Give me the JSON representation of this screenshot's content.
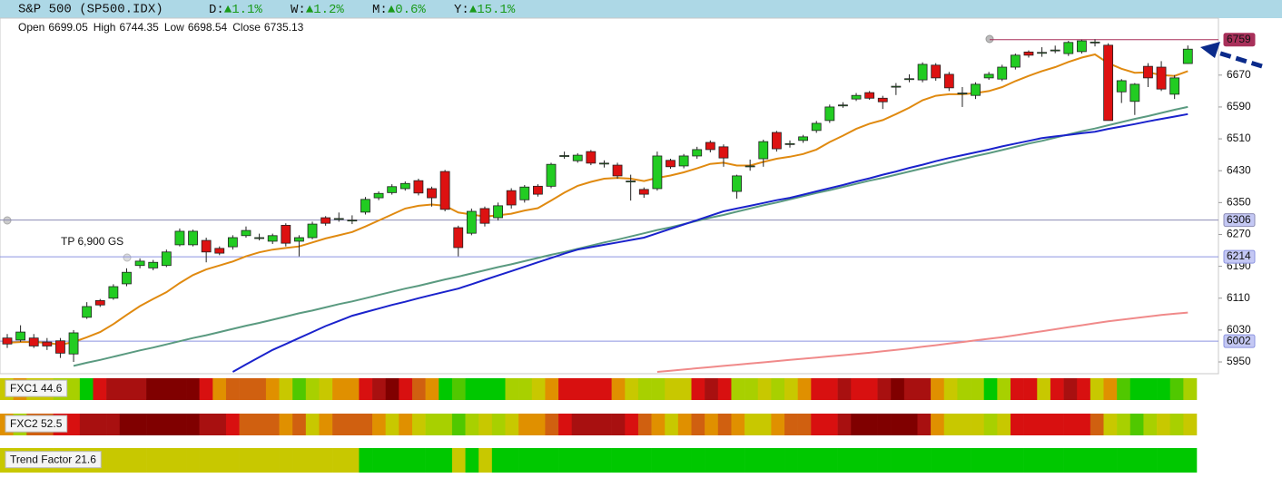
{
  "chart_data": {
    "type": "candlestick",
    "title": "S&P 500 (SP500.IDX)",
    "stats": [
      {
        "label": "D:",
        "change": "▲1.1%"
      },
      {
        "label": "W:",
        "change": "▲1.2%"
      },
      {
        "label": "M:",
        "change": "▲0.6%"
      },
      {
        "label": "Y:",
        "change": "▲15.1%"
      }
    ],
    "ohlc_labels": [
      "Open",
      "High",
      "Low",
      "Close"
    ],
    "up_color": "#22cc22",
    "down_color": "#dd1111",
    "ylim": [
      5925,
      6813
    ],
    "yticks": [
      5950,
      6030,
      6110,
      6190,
      6270,
      6350,
      6430,
      6510,
      6590,
      6670
    ],
    "open": [
      6010,
      6005,
      6010,
      6000,
      6003,
      5970,
      6062,
      6104,
      6110,
      6146,
      6192,
      6186,
      6192,
      6244,
      6244,
      6255,
      6235,
      6239,
      6267,
      6262,
      6253,
      6293,
      6253,
      6262,
      6312,
      6310,
      6305,
      6326,
      6362,
      6375,
      6385,
      6405,
      6385,
      6428,
      6287,
      6273,
      6335,
      6312,
      6380,
      6357,
      6391,
      6391,
      6467,
      6455,
      6478,
      6448,
      6444,
      6404,
      6383,
      6385,
      6456,
      6442,
      6467,
      6501,
      6490,
      6378,
      6442,
      6460,
      6526,
      6497,
      6506,
      6531,
      6556,
      6594,
      6610,
      6626,
      6612,
      6642,
      6660,
      6658,
      6695,
      6672,
      6624,
      6619,
      6663,
      6660,
      6690,
      6728,
      6726,
      6732,
      6724,
      6729,
      6752,
      6745,
      6628,
      6604,
      6692,
      6690,
      6622,
      6699.05
    ],
    "high": [
      6020,
      6042,
      6020,
      6010,
      6010,
      6030,
      6100,
      6108,
      6145,
      6185,
      6210,
      6206,
      6232,
      6285,
      6282,
      6262,
      6240,
      6268,
      6290,
      6272,
      6272,
      6298,
      6268,
      6302,
      6316,
      6325,
      6318,
      6364,
      6378,
      6396,
      6403,
      6410,
      6390,
      6432,
      6292,
      6335,
      6340,
      6350,
      6386,
      6394,
      6396,
      6450,
      6478,
      6474,
      6482,
      6456,
      6450,
      6420,
      6388,
      6478,
      6460,
      6472,
      6490,
      6506,
      6496,
      6420,
      6458,
      6508,
      6530,
      6506,
      6520,
      6555,
      6596,
      6602,
      6625,
      6630,
      6618,
      6650,
      6672,
      6702,
      6700,
      6678,
      6640,
      6652,
      6678,
      6696,
      6724,
      6732,
      6740,
      6744,
      6756,
      6759,
      6760,
      6750,
      6660,
      6650,
      6700,
      6705,
      6670,
      6744.35
    ],
    "low": [
      5985,
      6000,
      5985,
      5980,
      5960,
      5950,
      6058,
      6088,
      6106,
      6140,
      6185,
      6180,
      6188,
      6240,
      6240,
      6200,
      6218,
      6232,
      6262,
      6255,
      6246,
      6240,
      6215,
      6258,
      6292,
      6302,
      6296,
      6320,
      6356,
      6370,
      6380,
      6368,
      6340,
      6328,
      6215,
      6268,
      6290,
      6305,
      6335,
      6350,
      6365,
      6386,
      6460,
      6450,
      6444,
      6438,
      6410,
      6355,
      6362,
      6380,
      6435,
      6436,
      6460,
      6476,
      6440,
      6360,
      6430,
      6440,
      6478,
      6488,
      6500,
      6525,
      6550,
      6588,
      6605,
      6608,
      6585,
      6620,
      6652,
      6652,
      6656,
      6630,
      6590,
      6610,
      6658,
      6655,
      6684,
      6714,
      6716,
      6725,
      6718,
      6724,
      6742,
      6556,
      6600,
      6570,
      6640,
      6630,
      6610,
      6698.54
    ],
    "close": [
      5995,
      6025,
      5990,
      5990,
      5972,
      6023,
      6089,
      6093,
      6139,
      6175,
      6203,
      6200,
      6226,
      6278,
      6278,
      6226,
      6223,
      6262,
      6280,
      6262,
      6267,
      6248,
      6262,
      6296,
      6298,
      6310,
      6306,
      6358,
      6373,
      6390,
      6398,
      6374,
      6362,
      6333,
      6237,
      6328,
      6298,
      6342,
      6344,
      6389,
      6371,
      6446,
      6468,
      6469,
      6449,
      6449,
      6417,
      6404,
      6371,
      6467,
      6440,
      6467,
      6483,
      6483,
      6462,
      6417,
      6442,
      6503,
      6485,
      6498,
      6515,
      6549,
      6590,
      6595,
      6619,
      6612,
      6603,
      6642,
      6661,
      6697,
      6663,
      6638,
      6625,
      6647,
      6672,
      6690,
      6720,
      6720,
      6727,
      6733,
      6752,
      6756,
      6753,
      6556,
      6656,
      6647,
      6663,
      6635,
      6663,
      6735.13
    ],
    "lines": [
      {
        "color": "#e08a10",
        "values": [
          5998,
          6000,
          6000,
          5998,
          5993,
          6000,
          6012,
          6025,
          6045,
          6068,
          6090,
          6108,
          6125,
          6148,
          6168,
          6182,
          6192,
          6202,
          6215,
          6225,
          6232,
          6236,
          6240,
          6250,
          6260,
          6268,
          6276,
          6290,
          6305,
          6320,
          6335,
          6342,
          6345,
          6342,
          6325,
          6320,
          6315,
          6318,
          6322,
          6330,
          6336,
          6355,
          6375,
          6392,
          6402,
          6410,
          6412,
          6410,
          6404,
          6412,
          6418,
          6426,
          6436,
          6447,
          6450,
          6443,
          6443,
          6452,
          6460,
          6465,
          6472,
          6483,
          6502,
          6518,
          6535,
          6548,
          6557,
          6572,
          6588,
          6607,
          6618,
          6622,
          6622,
          6625,
          6630,
          6640,
          6655,
          6668,
          6680,
          6690,
          6703,
          6714,
          6722,
          6700,
          6686,
          6676,
          6677,
          6670,
          6668,
          6680
        ]
      },
      {
        "color": "#5a9a80",
        "values": [
          null,
          null,
          null,
          null,
          null,
          5940,
          5948,
          5955,
          5963,
          5971,
          5979,
          5986,
          5994,
          6002,
          6010,
          6017,
          6025,
          6033,
          6041,
          6048,
          6056,
          6064,
          6072,
          6079,
          6087,
          6095,
          6102,
          6110,
          6118,
          6126,
          6134,
          6141,
          6149,
          6157,
          6164,
          6172,
          6180,
          6188,
          6195,
          6203,
          6211,
          6219,
          6226,
          6234,
          6242,
          6250,
          6257,
          6265,
          6273,
          6281,
          6288,
          6296,
          6304,
          6312,
          6319,
          6327,
          6335,
          6343,
          6350,
          6358,
          6366,
          6374,
          6381,
          6389,
          6397,
          6405,
          6412,
          6420,
          6428,
          6436,
          6443,
          6451,
          6459,
          6467,
          6474,
          6482,
          6490,
          6498,
          6505,
          6513,
          6521,
          6529,
          6536,
          6544,
          6552,
          6560,
          6567,
          6575,
          6583,
          6590
        ]
      },
      {
        "color": "#1a22cc",
        "values": [
          null,
          null,
          null,
          null,
          null,
          null,
          null,
          null,
          null,
          null,
          null,
          null,
          null,
          null,
          null,
          null,
          null,
          5925,
          5944,
          5962,
          5980,
          5995,
          6010,
          6025,
          6040,
          6053,
          6066,
          6075,
          6084,
          6093,
          6101,
          6110,
          6118,
          6126,
          6134,
          6145,
          6156,
          6167,
          6178,
          6189,
          6200,
          6211,
          6222,
          6232,
          6238,
          6244,
          6250,
          6256,
          6262,
          6273,
          6284,
          6295,
          6306,
          6317,
          6328,
          6335,
          6342,
          6349,
          6356,
          6362,
          6370,
          6378,
          6386,
          6394,
          6403,
          6411,
          6420,
          6428,
          6437,
          6445,
          6454,
          6462,
          6469,
          6476,
          6483,
          6491,
          6498,
          6505,
          6512,
          6516,
          6520,
          6524,
          6528,
          6535,
          6541,
          6547,
          6554,
          6560,
          6566,
          6572
        ]
      },
      {
        "color": "#f08a8a",
        "values": [
          null,
          null,
          null,
          null,
          null,
          null,
          null,
          null,
          null,
          null,
          null,
          null,
          null,
          null,
          null,
          null,
          null,
          null,
          null,
          null,
          null,
          null,
          null,
          null,
          null,
          null,
          null,
          null,
          null,
          null,
          null,
          null,
          null,
          null,
          null,
          null,
          null,
          null,
          null,
          null,
          null,
          null,
          null,
          null,
          null,
          null,
          null,
          null,
          null,
          5925,
          5928,
          5931,
          5934,
          5937,
          5940,
          5943,
          5946,
          5949,
          5952,
          5955,
          5958,
          5961,
          5964,
          5967,
          5970,
          5973,
          5977,
          5980,
          5984,
          5988,
          5992,
          5996,
          6000,
          6004,
          6008,
          6012,
          6017,
          6022,
          6027,
          6032,
          6037,
          6042,
          6047,
          6052,
          6056,
          6060,
          6064,
          6068,
          6071,
          6074
        ]
      }
    ],
    "levels": [
      {
        "value": 6759,
        "color": "#a8305a"
      },
      {
        "value": 6306,
        "color": "#8c8cb4"
      },
      {
        "value": 6214,
        "color": "#8c94e0"
      },
      {
        "value": 6002,
        "color": "#8c94e0"
      }
    ],
    "annotation": "TP 6,900 GS",
    "indicators": [
      {
        "label": "FXC1 44.6",
        "colors": [
          "#c8c800",
          "#e09000",
          "#c8c800",
          "#c8c800",
          "#a8d000",
          "#a8d000",
          "#00c800",
          "#d81010",
          "#a81010",
          "#a81010",
          "#a81010",
          "#800000",
          "#800000",
          "#800000",
          "#800000",
          "#d81010",
          "#e09000",
          "#d06010",
          "#d06010",
          "#d06010",
          "#e09000",
          "#c8c800",
          "#50c800",
          "#a8d000",
          "#c8c800",
          "#e09000",
          "#e09000",
          "#d81010",
          "#a81010",
          "#800000",
          "#d81010",
          "#d06010",
          "#e09000",
          "#00c800",
          "#50c800",
          "#00c800",
          "#00c800",
          "#00c800",
          "#a8d000",
          "#a8d000",
          "#c8c800",
          "#e09000",
          "#d81010",
          "#d81010",
          "#d81010",
          "#d81010",
          "#e09000",
          "#c8c800",
          "#a8d000",
          "#a8d000",
          "#c8c800",
          "#c8c800",
          "#d81010",
          "#a81010",
          "#d81010",
          "#a8d000",
          "#a8d000",
          "#c8c800",
          "#a8d000",
          "#c8c800",
          "#e09000",
          "#d81010",
          "#d81010",
          "#a81010",
          "#d81010",
          "#d81010",
          "#a81010",
          "#800000",
          "#a81010",
          "#a81010",
          "#e09000",
          "#c8c800",
          "#a8d000",
          "#a8d000",
          "#00c800",
          "#a8d000",
          "#d81010",
          "#d81010",
          "#c8c800",
          "#d81010",
          "#a81010",
          "#d81010",
          "#c8c800",
          "#e09000",
          "#50c800",
          "#00c800",
          "#00c800",
          "#00c800",
          "#50c800",
          "#a8d000"
        ]
      },
      {
        "label": "FXC2 52.5",
        "colors": [
          "#e09000",
          "#a8d000",
          "#d06010",
          "#d06010",
          "#d81010",
          "#d81010",
          "#a81010",
          "#a81010",
          "#a81010",
          "#800000",
          "#800000",
          "#800000",
          "#800000",
          "#800000",
          "#800000",
          "#a81010",
          "#a81010",
          "#d81010",
          "#d06010",
          "#d06010",
          "#d06010",
          "#e09000",
          "#d06010",
          "#c8c800",
          "#e09000",
          "#d06010",
          "#d06010",
          "#d06010",
          "#e09000",
          "#c8c800",
          "#e09000",
          "#c8c800",
          "#a8d000",
          "#a8d000",
          "#50c800",
          "#a8d000",
          "#c8c800",
          "#a8d000",
          "#c8c800",
          "#e09000",
          "#e09000",
          "#d06010",
          "#d81010",
          "#a81010",
          "#a81010",
          "#a81010",
          "#a81010",
          "#d81010",
          "#d06010",
          "#e09000",
          "#c8c800",
          "#e09000",
          "#d06010",
          "#e09000",
          "#d06010",
          "#e09000",
          "#c8c800",
          "#c8c800",
          "#e09000",
          "#d06010",
          "#d06010",
          "#d81010",
          "#d81010",
          "#a81010",
          "#800000",
          "#800000",
          "#800000",
          "#800000",
          "#800000",
          "#a81010",
          "#e09000",
          "#c8c800",
          "#c8c800",
          "#c8c800",
          "#a8d000",
          "#c8c800",
          "#d81010",
          "#d81010",
          "#d81010",
          "#d81010",
          "#d81010",
          "#d81010",
          "#d06010",
          "#c8c800",
          "#a8d000",
          "#50c800",
          "#a8d000",
          "#c8c800",
          "#a8d000",
          "#c8c800"
        ]
      },
      {
        "label": "Trend Factor 21.6",
        "colors": [
          "#c8c800",
          "#c8c800",
          "#c8c800",
          "#c8c800",
          "#c8c800",
          "#c8c800",
          "#c8c800",
          "#c8c800",
          "#c8c800",
          "#c8c800",
          "#c8c800",
          "#c8c800",
          "#c8c800",
          "#c8c800",
          "#c8c800",
          "#c8c800",
          "#c8c800",
          "#c8c800",
          "#c8c800",
          "#c8c800",
          "#c8c800",
          "#c8c800",
          "#c8c800",
          "#c8c800",
          "#c8c800",
          "#c8c800",
          "#c8c800",
          "#00c800",
          "#00c800",
          "#00c800",
          "#00c800",
          "#00c800",
          "#00c800",
          "#00c800",
          "#c8c800",
          "#00c800",
          "#c8c800",
          "#00c800",
          "#00c800",
          "#00c800",
          "#00c800",
          "#00c800",
          "#00c800",
          "#00c800",
          "#00c800",
          "#00c800",
          "#00c800",
          "#00c800",
          "#00c800",
          "#00c800",
          "#00c800",
          "#00c800",
          "#00c800",
          "#00c800",
          "#00c800",
          "#00c800",
          "#00c800",
          "#00c800",
          "#00c800",
          "#00c800",
          "#00c800",
          "#00c800",
          "#00c800",
          "#00c800",
          "#00c800",
          "#00c800",
          "#00c800",
          "#00c800",
          "#00c800",
          "#00c800",
          "#00c800",
          "#00c800",
          "#00c800",
          "#00c800",
          "#00c800",
          "#00c800",
          "#00c800",
          "#00c800",
          "#00c800",
          "#00c800",
          "#00c800",
          "#00c800",
          "#00c800",
          "#00c800",
          "#00c800",
          "#00c800",
          "#00c800",
          "#00c800",
          "#00c800",
          "#00c800"
        ]
      }
    ]
  }
}
